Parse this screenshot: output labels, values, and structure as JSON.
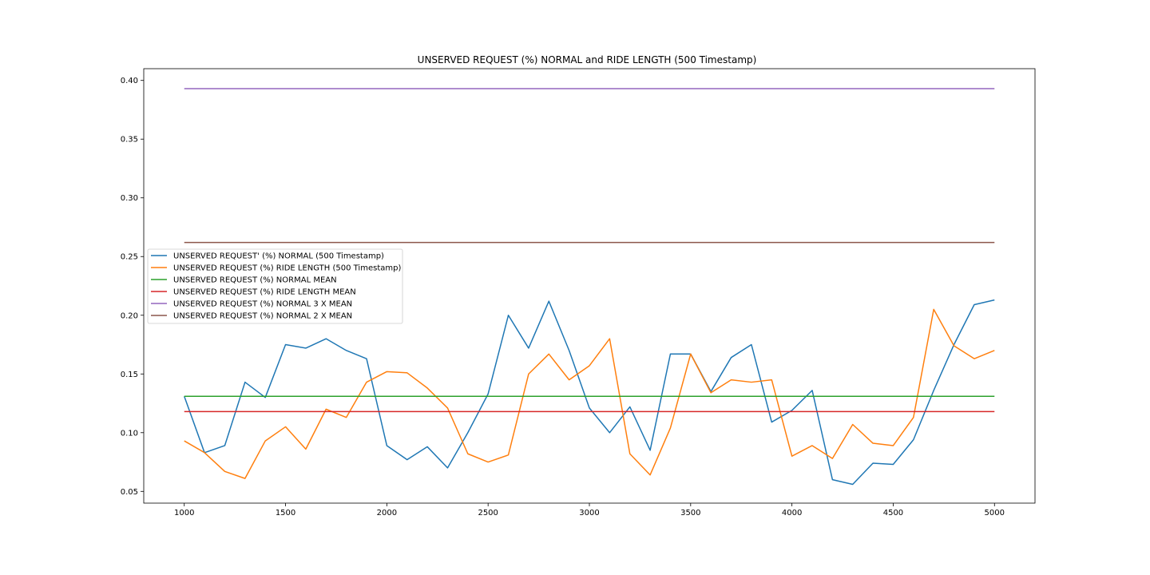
{
  "chart_data": {
    "type": "line",
    "title": "UNSERVED REQUEST (%) NORMAL and RIDE LENGTH (500 Timestamp)",
    "xlabel": "",
    "ylabel": "",
    "xlim": [
      800,
      5200
    ],
    "ylim": [
      0.04,
      0.41
    ],
    "xticks": [
      1000,
      1500,
      2000,
      2500,
      3000,
      3500,
      4000,
      4500,
      5000
    ],
    "yticks": [
      0.05,
      0.1,
      0.15,
      0.2,
      0.25,
      0.3,
      0.35,
      0.4
    ],
    "xtick_labels": [
      "1000",
      "1500",
      "2000",
      "2500",
      "3000",
      "3500",
      "4000",
      "4500",
      "5000"
    ],
    "ytick_labels": [
      "0.05",
      "0.10",
      "0.15",
      "0.20",
      "0.25",
      "0.30",
      "0.35",
      "0.40"
    ],
    "grid": false,
    "legend_position": "center-left",
    "x": [
      1000,
      1100,
      1200,
      1300,
      1400,
      1500,
      1600,
      1700,
      1800,
      1900,
      2000,
      2100,
      2200,
      2300,
      2400,
      2500,
      2600,
      2700,
      2800,
      2900,
      3000,
      3100,
      3200,
      3300,
      3400,
      3500,
      3600,
      3700,
      3800,
      3900,
      4000,
      4100,
      4200,
      4300,
      4400,
      4500,
      4600,
      4700,
      4800,
      4900,
      5000
    ],
    "series": [
      {
        "name": "UNSERVED REQUEST' (%) NORMAL (500 Timestamp)",
        "color": "#1f77b4",
        "values": [
          0.131,
          0.083,
          0.089,
          0.143,
          0.13,
          0.175,
          0.172,
          0.18,
          0.17,
          0.163,
          0.089,
          0.077,
          0.088,
          0.07,
          0.1,
          0.133,
          0.2,
          0.172,
          0.212,
          0.17,
          0.121,
          0.1,
          0.122,
          0.085,
          0.167,
          0.167,
          0.135,
          0.164,
          0.175,
          0.109,
          0.119,
          0.136,
          0.06,
          0.056,
          0.074,
          0.073,
          0.094,
          0.136,
          0.175,
          0.209,
          0.213
        ]
      },
      {
        "name": "UNSERVED REQUEST (%) RIDE LENGTH (500 Timestamp)",
        "color": "#ff7f0e",
        "values": [
          0.093,
          0.083,
          0.067,
          0.061,
          0.093,
          0.105,
          0.086,
          0.12,
          0.113,
          0.143,
          0.152,
          0.151,
          0.138,
          0.121,
          0.082,
          0.075,
          0.081,
          0.15,
          0.167,
          0.145,
          0.157,
          0.18,
          0.082,
          0.064,
          0.104,
          0.167,
          0.134,
          0.145,
          0.143,
          0.145,
          0.08,
          0.089,
          0.078,
          0.107,
          0.091,
          0.089,
          0.113,
          0.205,
          0.174,
          0.163,
          0.17
        ]
      },
      {
        "name": "UNSERVED REQUEST (%) NORMAL MEAN",
        "color": "#2ca02c",
        "constant": 0.131
      },
      {
        "name": "UNSERVED REQUEST (%) RIDE LENGTH MEAN",
        "color": "#d62728",
        "constant": 0.118
      },
      {
        "name": "UNSERVED REQUEST (%) NORMAL 3 X MEAN",
        "color": "#9467bd",
        "constant": 0.393
      },
      {
        "name": "UNSERVED REQUEST (%) NORMAL 2 X MEAN",
        "color": "#8c564b",
        "constant": 0.262
      }
    ]
  }
}
